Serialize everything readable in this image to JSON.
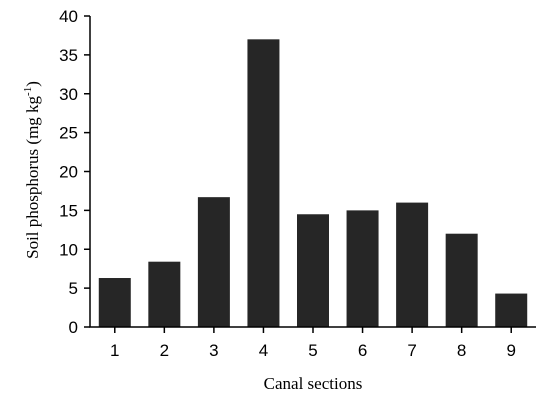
{
  "chart_data": {
    "type": "bar",
    "categories": [
      "1",
      "2",
      "3",
      "4",
      "5",
      "6",
      "7",
      "8",
      "9"
    ],
    "values": [
      6.3,
      8.4,
      16.7,
      37.0,
      14.5,
      15.0,
      16.0,
      12.0,
      4.3
    ],
    "xlabel": "Canal sections",
    "ylabel": {
      "main": "Soil phosphorus (mg kg",
      "sup": "-1",
      "close": ")"
    },
    "ylim": [
      0,
      40
    ],
    "yticks": [
      "0",
      "5",
      "10",
      "15",
      "20",
      "25",
      "30",
      "35",
      "40"
    ],
    "grid": false,
    "bar_color": "#262626"
  }
}
